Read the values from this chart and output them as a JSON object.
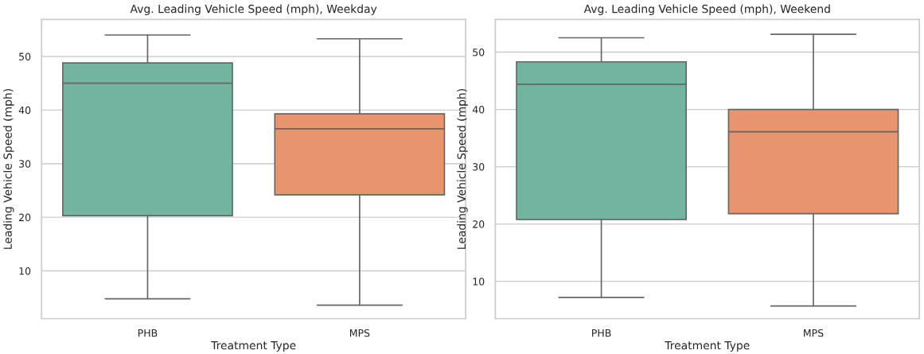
{
  "chart_data": [
    {
      "type": "box",
      "title": "Avg. Leading Vehicle Speed (mph), Weekday",
      "xlabel": "Treatment Type",
      "ylabel": "Leading Vehicle Speed (mph)",
      "categories": [
        "PHB",
        "MPS"
      ],
      "colors": [
        "#72b4a0",
        "#e8956f"
      ],
      "boxes": [
        {
          "low": 4.8,
          "q1": 20.3,
          "median": 45.0,
          "q3": 48.8,
          "high": 54.0
        },
        {
          "low": 3.6,
          "q1": 24.2,
          "median": 36.5,
          "q3": 39.3,
          "high": 53.3
        }
      ],
      "ylim": [
        1.1,
        56.9
      ],
      "yticks": [
        10,
        20,
        30,
        40,
        50
      ],
      "grid": "y"
    },
    {
      "type": "box",
      "title": "Avg. Leading Vehicle Speed (mph), Weekend",
      "xlabel": "Treatment Type",
      "ylabel": "Leading Vehicle Speed (mph)",
      "categories": [
        "PHB",
        "MPS"
      ],
      "colors": [
        "#72b4a0",
        "#e8956f"
      ],
      "boxes": [
        {
          "low": 7.2,
          "q1": 20.8,
          "median": 44.4,
          "q3": 48.3,
          "high": 52.5
        },
        {
          "low": 5.7,
          "q1": 21.8,
          "median": 36.1,
          "q3": 40.0,
          "high": 53.1
        }
      ],
      "ylim": [
        3.5,
        55.7
      ],
      "yticks": [
        10,
        20,
        30,
        40,
        50
      ],
      "grid": "y"
    }
  ]
}
